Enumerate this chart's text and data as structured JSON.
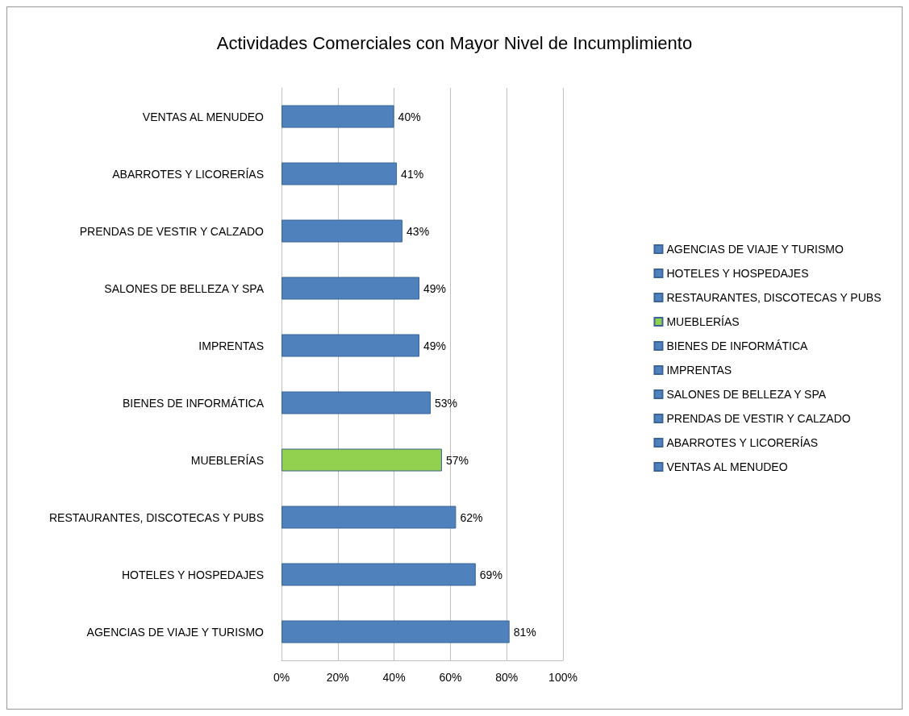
{
  "chart_data": {
    "type": "bar",
    "orientation": "horizontal",
    "title": "Actividades Comerciales con Mayor Nivel de Incumplimiento",
    "categories": [
      "VENTAS AL MENUDEO",
      "ABARROTES Y LICORERÍAS",
      "PRENDAS DE VESTIR Y CALZADO",
      "SALONES DE BELLEZA Y SPA",
      "IMPRENTAS",
      "BIENES DE INFORMÁTICA",
      "MUEBLERÍAS",
      "RESTAURANTES, DISCOTECAS Y PUBS",
      "HOTELES Y HOSPEDAJES",
      "AGENCIAS DE VIAJE Y TURISMO"
    ],
    "series": [
      {
        "name": "AGENCIAS DE VIAJE Y TURISMO",
        "color": "#4f81bd",
        "values": [
          null,
          null,
          null,
          null,
          null,
          null,
          null,
          null,
          null,
          81
        ],
        "value_labels": [
          null,
          null,
          null,
          null,
          null,
          null,
          null,
          null,
          null,
          "81%"
        ]
      },
      {
        "name": "HOTELES Y HOSPEDAJES",
        "color": "#4f81bd",
        "values": [
          null,
          null,
          null,
          null,
          null,
          null,
          null,
          null,
          69,
          null
        ],
        "value_labels": [
          null,
          null,
          null,
          null,
          null,
          null,
          null,
          null,
          "69%",
          null
        ]
      },
      {
        "name": "RESTAURANTES, DISCOTECAS Y PUBS",
        "color": "#4f81bd",
        "values": [
          null,
          null,
          null,
          null,
          null,
          null,
          null,
          62,
          null,
          null
        ],
        "value_labels": [
          null,
          null,
          null,
          null,
          null,
          null,
          null,
          "62%",
          null,
          null
        ]
      },
      {
        "name": "MUEBLERÍAS",
        "color": "#92d050",
        "values": [
          null,
          null,
          null,
          null,
          null,
          null,
          57,
          null,
          null,
          null
        ],
        "value_labels": [
          null,
          null,
          null,
          null,
          null,
          null,
          "57%",
          null,
          null,
          null
        ]
      },
      {
        "name": "BIENES DE INFORMÁTICA",
        "color": "#4f81bd",
        "values": [
          null,
          null,
          null,
          null,
          null,
          53,
          null,
          null,
          null,
          null
        ],
        "value_labels": [
          null,
          null,
          null,
          null,
          null,
          "53%",
          null,
          null,
          null,
          null
        ]
      },
      {
        "name": "IMPRENTAS",
        "color": "#4f81bd",
        "values": [
          null,
          null,
          null,
          null,
          49,
          null,
          null,
          null,
          null,
          null
        ],
        "value_labels": [
          null,
          null,
          null,
          null,
          "49%",
          null,
          null,
          null,
          null,
          null
        ]
      },
      {
        "name": "SALONES DE BELLEZA Y SPA",
        "color": "#4f81bd",
        "values": [
          null,
          null,
          null,
          49,
          null,
          null,
          null,
          null,
          null,
          null
        ],
        "value_labels": [
          null,
          null,
          null,
          "49%",
          null,
          null,
          null,
          null,
          null,
          null
        ]
      },
      {
        "name": "PRENDAS DE VESTIR Y CALZADO",
        "color": "#4f81bd",
        "values": [
          null,
          null,
          43,
          null,
          null,
          null,
          null,
          null,
          null,
          null
        ],
        "value_labels": [
          null,
          null,
          "43%",
          null,
          null,
          null,
          null,
          null,
          null,
          null
        ]
      },
      {
        "name": "ABARROTES Y LICORERÍAS",
        "color": "#4f81bd",
        "values": [
          null,
          41,
          null,
          null,
          null,
          null,
          null,
          null,
          null,
          null
        ],
        "value_labels": [
          null,
          "41%",
          null,
          null,
          null,
          null,
          null,
          null,
          null,
          null
        ]
      },
      {
        "name": "VENTAS AL MENUDEO",
        "color": "#4f81bd",
        "values": [
          40,
          null,
          null,
          null,
          null,
          null,
          null,
          null,
          null,
          null
        ],
        "value_labels": [
          "40%",
          null,
          null,
          null,
          null,
          null,
          null,
          null,
          null,
          null
        ]
      }
    ],
    "xlim": [
      0,
      100
    ],
    "xticks": [
      {
        "value": 0,
        "label": "0%"
      },
      {
        "value": 20,
        "label": "20%"
      },
      {
        "value": 40,
        "label": "40%"
      },
      {
        "value": 60,
        "label": "60%"
      },
      {
        "value": 80,
        "label": "80%"
      },
      {
        "value": 100,
        "label": "100%"
      }
    ],
    "grid": "x",
    "legend": "right"
  }
}
